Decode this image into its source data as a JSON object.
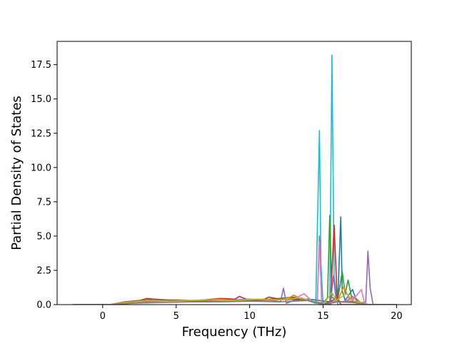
{
  "chart_data": {
    "type": "line",
    "title": "",
    "xlabel": "Frequency (THz)",
    "ylabel": "Partial Density of States",
    "xlim": [
      -3.1,
      21.0
    ],
    "ylim": [
      0,
      19.2
    ],
    "xticks": [
      0,
      5,
      10,
      15,
      20
    ],
    "xtick_labels": [
      "0",
      "5",
      "10",
      "15",
      "20"
    ],
    "yticks": [
      0.0,
      2.5,
      5.0,
      7.5,
      10.0,
      12.5,
      15.0,
      17.5
    ],
    "ytick_labels": [
      "0.0",
      "2.5",
      "5.0",
      "7.5",
      "10.0",
      "12.5",
      "15.0",
      "17.5"
    ],
    "grid": false,
    "legend": "none",
    "series": [
      {
        "color": "#17becf",
        "x": [
          -2.0,
          0.5,
          1.5,
          2.5,
          3.5,
          4.5,
          5.5,
          6.5,
          7.5,
          8.5,
          9.5,
          10.5,
          11.5,
          12.5,
          13.5,
          14.5,
          14.75,
          14.85,
          15.0,
          15.45,
          15.6,
          15.75,
          16.0,
          17.0,
          18.0,
          20.0
        ],
        "y": [
          0,
          0,
          0.1,
          0.2,
          0.25,
          0.2,
          0.25,
          0.3,
          0.4,
          0.3,
          0.35,
          0.3,
          0.4,
          0.35,
          0.45,
          0.1,
          12.7,
          3.0,
          0,
          0,
          18.2,
          2.0,
          0,
          0,
          0,
          0
        ]
      },
      {
        "color": "#1f77b4",
        "x": [
          -2.0,
          0.5,
          2.0,
          4.0,
          6.0,
          8.0,
          10.0,
          12.0,
          14.0,
          15.5,
          16.0,
          16.2,
          16.3,
          16.5,
          17.0,
          17.3,
          18.0,
          20.0
        ],
        "y": [
          0,
          0,
          0.15,
          0.2,
          0.25,
          0.3,
          0.25,
          0.4,
          0.4,
          0.2,
          0.3,
          6.4,
          1.0,
          0.3,
          1.1,
          0.2,
          0,
          0
        ]
      },
      {
        "color": "#2ca02c",
        "x": [
          -2.0,
          0.5,
          2.0,
          4.0,
          6.0,
          8.0,
          10.0,
          12.0,
          13.0,
          14.0,
          15.0,
          15.3,
          15.45,
          15.6,
          16.0,
          16.3,
          16.5,
          16.7,
          17.0,
          18.0,
          20.0
        ],
        "y": [
          0,
          0,
          0.2,
          0.3,
          0.2,
          0.35,
          0.3,
          0.45,
          0.55,
          0.3,
          0.1,
          0.5,
          6.5,
          0.5,
          0.4,
          2.4,
          0.8,
          1.8,
          0.2,
          0,
          0
        ]
      },
      {
        "color": "#d62728",
        "x": [
          -2.0,
          0.5,
          1.5,
          2.5,
          3.0,
          4.0,
          5.0,
          6.0,
          7.0,
          8.0,
          9.0,
          9.3,
          10.0,
          11.0,
          11.3,
          12.0,
          13.0,
          14.0,
          15.0,
          15.5,
          15.75,
          15.95,
          16.2,
          18.0,
          20.0
        ],
        "y": [
          0,
          0,
          0.2,
          0.3,
          0.45,
          0.35,
          0.25,
          0.3,
          0.35,
          0.45,
          0.4,
          0.6,
          0.3,
          0.4,
          0.55,
          0.4,
          0.5,
          0.3,
          0,
          0,
          5.8,
          0.6,
          0,
          0,
          0
        ]
      },
      {
        "color": "#ff7f0e",
        "x": [
          -2.0,
          0.5,
          2.0,
          3.0,
          4.0,
          5.0,
          6.0,
          7.0,
          8.0,
          9.0,
          10.0,
          11.0,
          12.0,
          12.7,
          13.0,
          13.5,
          14.0,
          15.0,
          16.0,
          16.4,
          16.8,
          17.2,
          17.5,
          18.0,
          20.0
        ],
        "y": [
          0,
          0,
          0.15,
          0.25,
          0.3,
          0.35,
          0.3,
          0.3,
          0.4,
          0.3,
          0.35,
          0.3,
          0.35,
          0.5,
          0.7,
          0.4,
          0.3,
          0,
          0.3,
          1.3,
          0.4,
          0.5,
          0.2,
          0,
          0
        ]
      },
      {
        "color": "#9467bd",
        "x": [
          -2.0,
          0.5,
          2.0,
          4.0,
          6.0,
          8.0,
          10.0,
          11.5,
          12.1,
          12.3,
          12.5,
          13.0,
          14.0,
          14.6,
          14.75,
          14.9,
          15.5,
          15.7,
          15.9,
          16.5,
          17.0,
          17.5,
          17.9,
          18.05,
          18.2,
          18.4,
          20.0
        ],
        "y": [
          0,
          0,
          0.2,
          0.35,
          0.3,
          0.3,
          0.4,
          0.3,
          0.2,
          1.2,
          0.1,
          0.3,
          0.35,
          0.1,
          5.0,
          0.1,
          0.1,
          2.1,
          0.2,
          0.2,
          0.6,
          0.1,
          0.2,
          3.9,
          1.2,
          0,
          0
        ]
      },
      {
        "color": "#e377c2",
        "x": [
          -2.0,
          0.5,
          2.0,
          4.0,
          6.0,
          8.0,
          10.0,
          12.0,
          13.0,
          13.7,
          14.2,
          14.6,
          14.75,
          14.9,
          15.3,
          16.0,
          17.0,
          17.6,
          17.8,
          18.0,
          20.0
        ],
        "y": [
          0,
          0,
          0.1,
          0.2,
          0.2,
          0.25,
          0.3,
          0.35,
          0.4,
          0.8,
          0.3,
          0.1,
          4.6,
          0.2,
          0.1,
          0.2,
          0.3,
          1.1,
          0.2,
          0,
          0
        ]
      },
      {
        "color": "#8c564b",
        "x": [
          -2.0,
          0.5,
          2.0,
          3.5,
          5.0,
          6.5,
          8.0,
          9.5,
          11.0,
          12.5,
          14.0,
          15.0,
          15.8,
          16.2,
          17.0,
          18.0,
          20.0
        ],
        "y": [
          0,
          0,
          0.25,
          0.4,
          0.3,
          0.25,
          0.35,
          0.3,
          0.35,
          0.4,
          0.3,
          0,
          0.4,
          0.2,
          0.2,
          0,
          0
        ]
      },
      {
        "color": "#bcbd22",
        "x": [
          -2.0,
          0.5,
          1.5,
          3.0,
          4.5,
          6.0,
          7.5,
          9.0,
          10.5,
          12.0,
          13.5,
          15.0,
          15.6,
          15.9,
          16.6,
          17.0,
          18.0,
          20.0
        ],
        "y": [
          0,
          0,
          0.15,
          0.3,
          0.25,
          0.3,
          0.35,
          0.3,
          0.4,
          0.35,
          0.5,
          0,
          0.9,
          0.3,
          0.8,
          0.3,
          0,
          0
        ]
      },
      {
        "color": "#7f7f7f",
        "x": [
          -2.0,
          0.5,
          2.0,
          4.0,
          6.0,
          8.0,
          10.0,
          12.0,
          14.0,
          15.0,
          16.0,
          17.0,
          18.0,
          20.0
        ],
        "y": [
          0,
          0,
          0.1,
          0.15,
          0.2,
          0.2,
          0.25,
          0.2,
          0.3,
          0,
          0.2,
          0.15,
          0,
          0
        ]
      }
    ]
  }
}
